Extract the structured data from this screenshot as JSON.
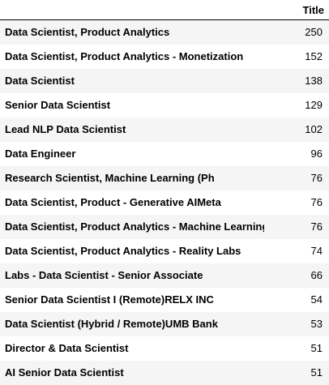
{
  "table": {
    "columns": [
      "",
      "Title"
    ],
    "rows": [
      {
        "label": "Data Scientist, Product Analytics",
        "value": "250"
      },
      {
        "label": "Data Scientist, Product Analytics - Monetization",
        "value": "152"
      },
      {
        "label": "Data Scientist",
        "value": "138"
      },
      {
        "label": "Senior Data Scientist",
        "value": "129"
      },
      {
        "label": "Lead NLP Data Scientist",
        "value": "102"
      },
      {
        "label": "Data Engineer",
        "value": "96"
      },
      {
        "label": "Research Scientist, Machine Learning (Ph",
        "value": "76"
      },
      {
        "label": "Data Scientist, Product - Generative AIMeta",
        "value": "76"
      },
      {
        "label": "Data Scientist, Product Analytics - Machine Learning",
        "value": "76"
      },
      {
        "label": "Data Scientist, Product Analytics - Reality Labs",
        "value": "74"
      },
      {
        "label": "Labs - Data Scientist - Senior Associate",
        "value": "66"
      },
      {
        "label": "Senior Data Scientist I (Remote)RELX INC",
        "value": "54"
      },
      {
        "label": "Data Scientist (Hybrid / Remote)UMB Bank",
        "value": "53"
      },
      {
        "label": "Director & Data Scientist",
        "value": "51"
      },
      {
        "label": "AI Senior Data Scientist",
        "value": "51"
      }
    ]
  }
}
